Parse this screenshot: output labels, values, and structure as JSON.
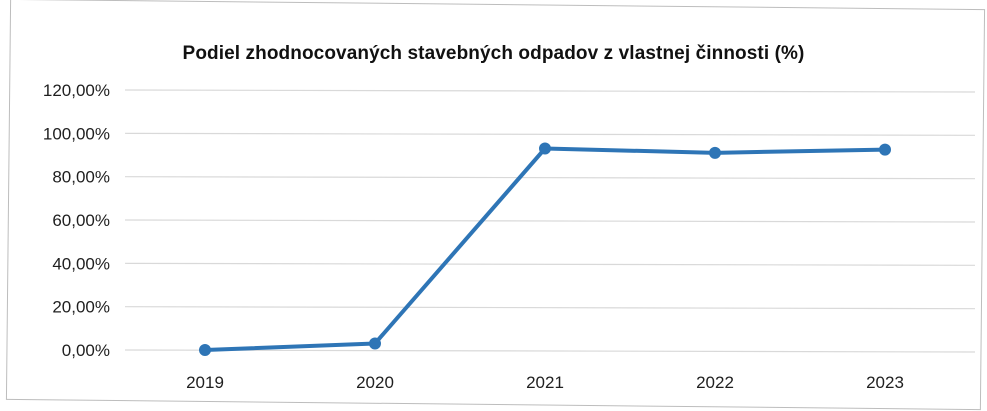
{
  "chart_data": {
    "type": "line",
    "title": "Podiel zhodnocovaných stavebných odpadov z vlastnej činnosti (%)",
    "xlabel": "",
    "ylabel": "",
    "categories": [
      "2019",
      "2020",
      "2021",
      "2022",
      "2023"
    ],
    "series": [
      {
        "values": [
          0.0,
          3.0,
          93.0,
          91.0,
          92.5
        ],
        "color": "#2e75b6",
        "marker": "circle"
      }
    ],
    "ylim": [
      0,
      120
    ],
    "yticks": [
      0,
      20,
      40,
      60,
      80,
      100,
      120
    ],
    "ytick_labels": [
      "0,00%",
      "20,00%",
      "40,00%",
      "60,00%",
      "80,00%",
      "100,00%",
      "120,00%"
    ],
    "grid": true,
    "legend": "none",
    "gridline_color": "#d9d9d9"
  }
}
